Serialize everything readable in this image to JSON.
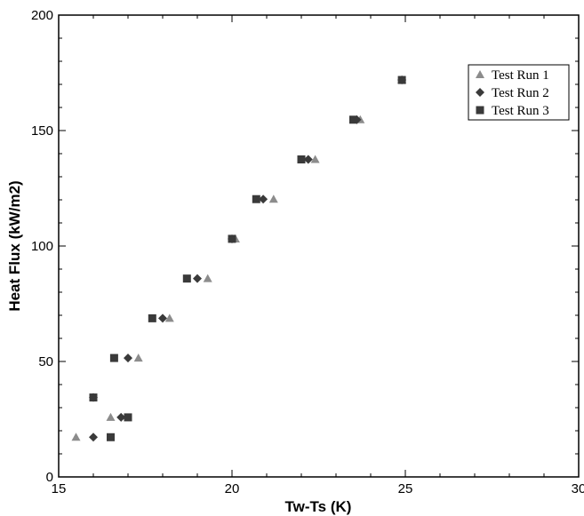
{
  "chart_data": {
    "type": "scatter",
    "title": "",
    "xlabel": "Tw-Ts (K)",
    "ylabel": "Heat Flux (kW/m2)",
    "xlim": [
      15,
      30
    ],
    "ylim": [
      0,
      200
    ],
    "xticks": [
      15,
      20,
      25,
      30
    ],
    "yticks": [
      0,
      50,
      100,
      150,
      200
    ],
    "grid": false,
    "legend_position": "top-right",
    "series": [
      {
        "name": "Test Run 1",
        "marker": "triangle",
        "color": "#8c8c8c",
        "x": [
          15.5,
          16.5,
          17.3,
          18.2,
          19.3,
          20.1,
          21.2,
          22.4,
          23.7,
          24.9
        ],
        "y": [
          17.2,
          25.8,
          51.5,
          68.7,
          85.9,
          103.1,
          120.3,
          137.5,
          154.7,
          171.9
        ]
      },
      {
        "name": "Test Run 2",
        "marker": "diamond",
        "color": "#3a3a3a",
        "x": [
          16.0,
          16.0,
          16.8,
          17.0,
          18.0,
          19.0,
          20.0,
          20.9,
          22.2,
          23.6,
          24.9
        ],
        "y": [
          17.2,
          34.4,
          25.8,
          51.5,
          68.7,
          85.9,
          103.1,
          120.3,
          137.5,
          154.7,
          171.9
        ]
      },
      {
        "name": "Test Run 3",
        "marker": "square",
        "color": "#3a3a3a",
        "x": [
          16.5,
          16.0,
          17.0,
          16.6,
          17.7,
          18.7,
          20.0,
          20.7,
          22.0,
          23.5,
          24.9
        ],
        "y": [
          17.2,
          34.4,
          25.8,
          51.5,
          68.7,
          85.9,
          103.1,
          120.3,
          137.5,
          154.7,
          171.9
        ]
      }
    ]
  }
}
